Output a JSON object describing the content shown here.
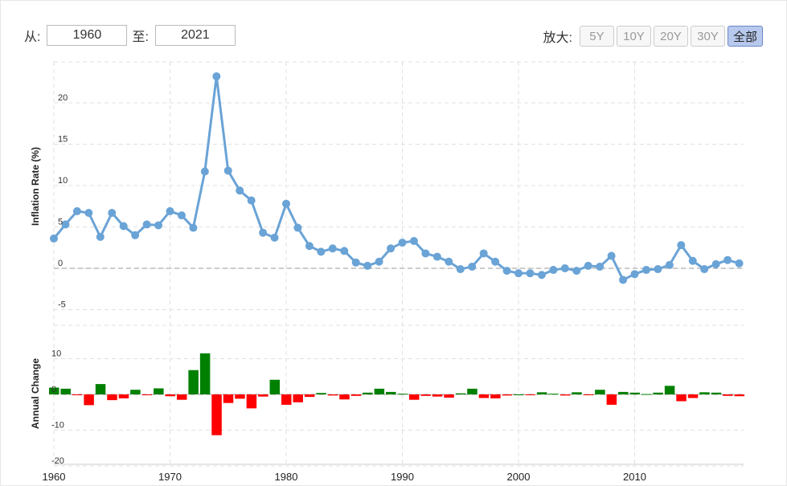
{
  "controls": {
    "from_label": "从:",
    "from_value": "1960",
    "to_label": "至:",
    "to_value": "2021",
    "zoom_label": "放大:",
    "zoom_buttons": [
      "5Y",
      "10Y",
      "20Y",
      "30Y",
      "全部"
    ],
    "active_zoom": "全部"
  },
  "colors": {
    "line": "#6aa3d6",
    "positive": "#008000",
    "negative": "#ff0000",
    "grid": "#e0e0e0"
  },
  "chart_data": [
    {
      "type": "line",
      "ylabel": "Inflation Rate (%)",
      "ylim": [
        -5,
        24
      ],
      "yticks": [
        -5,
        0,
        5,
        10,
        15,
        20
      ],
      "x": [
        1960,
        1961,
        1962,
        1963,
        1964,
        1965,
        1966,
        1967,
        1968,
        1969,
        1970,
        1971,
        1972,
        1973,
        1974,
        1975,
        1976,
        1977,
        1978,
        1979,
        1980,
        1981,
        1982,
        1983,
        1984,
        1985,
        1986,
        1987,
        1988,
        1989,
        1990,
        1991,
        1992,
        1993,
        1994,
        1995,
        1996,
        1997,
        1998,
        1999,
        2000,
        2001,
        2002,
        2003,
        2004,
        2005,
        2006,
        2007,
        2008,
        2009,
        2010,
        2011,
        2012,
        2013,
        2014,
        2015,
        2016,
        2017,
        2018,
        2019
      ],
      "series": [
        {
          "values": [
            3.6,
            5.3,
            6.9,
            6.7,
            3.8,
            6.7,
            5.1,
            4.0,
            5.3,
            5.2,
            6.9,
            6.4,
            4.9,
            11.7,
            23.2,
            11.8,
            9.4,
            8.2,
            4.3,
            3.7,
            7.8,
            4.9,
            2.7,
            2.0,
            2.4,
            2.1,
            0.7,
            0.3,
            0.8,
            2.4,
            3.1,
            3.3,
            1.8,
            1.4,
            0.8,
            -0.1,
            0.2,
            1.8,
            0.8,
            -0.3,
            -0.6,
            -0.6,
            -0.8,
            -0.2,
            0.0,
            -0.3,
            0.3,
            0.2,
            1.5,
            -1.4,
            -0.7,
            -0.2,
            -0.1,
            0.4,
            2.8,
            0.9,
            -0.1,
            0.5,
            1.0,
            0.6
          ]
        }
      ],
      "grid": true
    },
    {
      "type": "bar",
      "ylabel": "Annual Change",
      "ylim": [
        -21,
        17
      ],
      "yticks": [
        -20,
        -10,
        0,
        10
      ],
      "x": [
        1960,
        1961,
        1962,
        1963,
        1964,
        1965,
        1966,
        1967,
        1968,
        1969,
        1970,
        1971,
        1972,
        1973,
        1974,
        1975,
        1976,
        1977,
        1978,
        1979,
        1980,
        1981,
        1982,
        1983,
        1984,
        1985,
        1986,
        1987,
        1988,
        1989,
        1990,
        1991,
        1992,
        1993,
        1994,
        1995,
        1996,
        1997,
        1998,
        1999,
        2000,
        2001,
        2002,
        2003,
        2004,
        2005,
        2006,
        2007,
        2008,
        2009,
        2010,
        2011,
        2012,
        2013,
        2014,
        2015,
        2016,
        2017,
        2018,
        2019
      ],
      "values": [
        1.9,
        1.6,
        -0.2,
        -3.0,
        2.9,
        -1.6,
        -1.1,
        1.3,
        -0.1,
        1.7,
        -0.5,
        -1.5,
        6.8,
        11.5,
        -11.4,
        -2.4,
        -1.2,
        -3.9,
        -0.6,
        4.1,
        -2.9,
        -2.2,
        -0.7,
        0.4,
        -0.3,
        -1.4,
        -0.4,
        0.5,
        1.6,
        0.7,
        0.2,
        -1.5,
        -0.4,
        -0.6,
        -0.9,
        0.3,
        1.6,
        -1.0,
        -1.1,
        -0.3,
        0.0,
        -0.2,
        0.6,
        0.2,
        -0.3,
        0.6,
        -0.1,
        1.3,
        -2.9,
        0.7,
        0.5,
        0.1,
        0.5,
        2.4,
        -1.9,
        -1.0,
        0.6,
        0.5,
        -0.4,
        -0.5
      ],
      "grid": true
    }
  ],
  "x_axis": {
    "ticks": [
      1960,
      1970,
      1980,
      1990,
      2000,
      2010
    ]
  }
}
